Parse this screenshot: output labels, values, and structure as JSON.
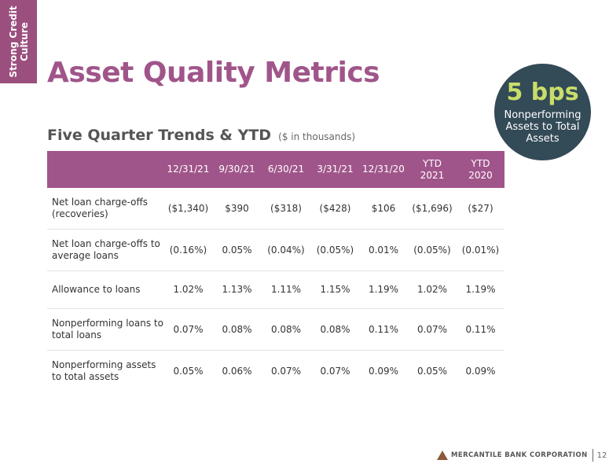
{
  "side_tab": {
    "line1": "Strong Credit",
    "line2": "Culture"
  },
  "title": "Asset Quality Metrics",
  "subtitle": {
    "main": "Five Quarter Trends & YTD",
    "units": "($ in thousands)"
  },
  "badge": {
    "value": "5 bps",
    "caption": "Nonperforming Assets to Total Assets"
  },
  "table": {
    "headers": [
      "",
      "12/31/21",
      "9/30/21",
      "6/30/21",
      "3/31/21",
      "12/31/20",
      "YTD\n2021",
      "YTD\n2020"
    ],
    "rows": [
      {
        "label": "Net loan charge-offs (recoveries)",
        "values": [
          "($1,340)",
          "$390",
          "($318)",
          "($428)",
          "$106",
          "($1,696)",
          "($27)"
        ]
      },
      {
        "label": "Net loan charge-offs to average loans",
        "values": [
          "(0.16%)",
          "0.05%",
          "(0.04%)",
          "(0.05%)",
          "0.01%",
          "(0.05%)",
          "(0.01%)"
        ]
      },
      {
        "label": "Allowance to loans",
        "values": [
          "1.02%",
          "1.13%",
          "1.11%",
          "1.15%",
          "1.19%",
          "1.02%",
          "1.19%"
        ]
      },
      {
        "label": "Nonperforming loans to total loans",
        "values": [
          "0.07%",
          "0.08%",
          "0.08%",
          "0.08%",
          "0.11%",
          "0.07%",
          "0.11%"
        ]
      },
      {
        "label": "Nonperforming assets to total assets",
        "values": [
          "0.05%",
          "0.06%",
          "0.07%",
          "0.07%",
          "0.09%",
          "0.05%",
          "0.09%"
        ]
      }
    ]
  },
  "footer": {
    "bank": "MERCANTILE BANK CORPORATION",
    "page": "12"
  },
  "colors": {
    "accent": "#a0558a",
    "badge_bg": "#334a57",
    "badge_value": "#c9de6a"
  }
}
